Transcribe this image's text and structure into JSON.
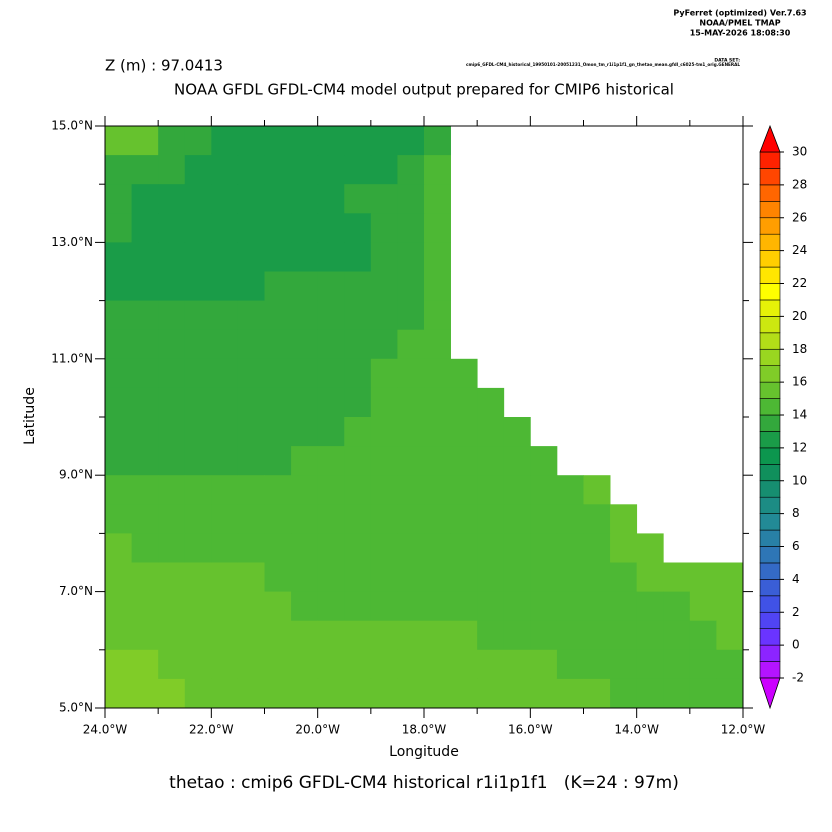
{
  "chart_data": {
    "type": "heatmap",
    "header": [
      "PyFerret (optimized) Ver.7.63",
      "NOAA/PMEL TMAP",
      "15-MAY-2026 18:08:30"
    ],
    "dataset_label": "DATA SET:",
    "dataset": "cmip6_GFDL-CM4_historical_19950101-20051231_Omon_tm_r1i1p1f1_gn_thetao_mean.gfdl_c6025-tm1_orig.GENERAL",
    "subtitle": "Z (m) : 97.0413",
    "title": "NOAA GFDL GFDL-CM4 model output prepared for CMIP6 historical",
    "footer": "thetao : cmip6 GFDL-CM4 historical r1i1p1f1   (K=24 : 97m)",
    "xlabel": "Longitude",
    "ylabel": "Latitude",
    "xlim": [
      -24,
      -12
    ],
    "ylim": [
      5,
      15
    ],
    "xticks": [
      {
        "value": -24,
        "label": "24.0°W"
      },
      {
        "value": -22,
        "label": "22.0°W"
      },
      {
        "value": -20,
        "label": "20.0°W"
      },
      {
        "value": -18,
        "label": "18.0°W"
      },
      {
        "value": -16,
        "label": "16.0°W"
      },
      {
        "value": -14,
        "label": "14.0°W"
      },
      {
        "value": -12,
        "label": "12.0°W"
      }
    ],
    "xminor_ticks": [
      -23,
      -21,
      -19,
      -17,
      -15,
      -13
    ],
    "yticks": [
      {
        "value": 5,
        "label": "5.0°N"
      },
      {
        "value": 7,
        "label": "7.0°N"
      },
      {
        "value": 9,
        "label": "9.0°N"
      },
      {
        "value": 11,
        "label": "11.0°N"
      },
      {
        "value": 13,
        "label": "13.0°N"
      },
      {
        "value": 15,
        "label": "15.0°N"
      }
    ],
    "yminor_ticks": [
      6,
      8,
      10,
      12,
      14
    ],
    "x": [
      -23.75,
      -23.25,
      -22.75,
      -22.25,
      -21.75,
      -21.25,
      -20.75,
      -20.25,
      -19.75,
      -19.25,
      -18.75,
      -18.25,
      -17.75,
      -17.25,
      -16.75,
      -16.25,
      -15.75,
      -15.25,
      -14.75,
      -14.25,
      -13.75,
      -13.25,
      -12.75,
      -12.25
    ],
    "y": [
      14.75,
      14.25,
      13.75,
      13.25,
      12.75,
      12.25,
      11.75,
      11.25,
      10.75,
      10.25,
      9.75,
      9.25,
      8.75,
      8.25,
      7.75,
      7.25,
      6.75,
      6.25,
      5.75,
      5.25
    ],
    "z": [
      [
        15.5,
        15.5,
        13.5,
        13.5,
        12.5,
        12.5,
        12.5,
        12.5,
        12.5,
        12.5,
        12.5,
        12.5,
        13.5,
        null,
        null,
        null,
        null,
        null,
        null,
        null,
        null,
        null,
        null,
        null
      ],
      [
        13.5,
        13.5,
        13.5,
        12.5,
        12.5,
        12.5,
        12.5,
        12.5,
        12.5,
        12.5,
        12.5,
        13.5,
        14.5,
        null,
        null,
        null,
        null,
        null,
        null,
        null,
        null,
        null,
        null,
        null
      ],
      [
        13.5,
        12.5,
        12.5,
        12.5,
        12.5,
        12.5,
        12.5,
        12.5,
        12.5,
        13.5,
        13.5,
        13.5,
        14.5,
        null,
        null,
        null,
        null,
        null,
        null,
        null,
        null,
        null,
        null,
        null
      ],
      [
        13.5,
        12.5,
        12.5,
        12.5,
        12.5,
        12.5,
        12.5,
        12.5,
        12.5,
        12.5,
        13.5,
        13.5,
        14.5,
        null,
        null,
        null,
        null,
        null,
        null,
        null,
        null,
        null,
        null,
        null
      ],
      [
        12.5,
        12.5,
        12.5,
        12.5,
        12.5,
        12.5,
        12.5,
        12.5,
        12.5,
        12.5,
        13.5,
        13.5,
        14.5,
        null,
        null,
        null,
        null,
        null,
        null,
        null,
        null,
        null,
        null,
        null
      ],
      [
        12.5,
        12.5,
        12.5,
        12.5,
        12.5,
        12.5,
        13.5,
        13.5,
        13.5,
        13.5,
        13.5,
        13.5,
        14.5,
        null,
        null,
        null,
        null,
        null,
        null,
        null,
        null,
        null,
        null,
        null
      ],
      [
        13.5,
        13.5,
        13.5,
        13.5,
        13.5,
        13.5,
        13.5,
        13.5,
        13.5,
        13.5,
        13.5,
        13.5,
        14.5,
        null,
        null,
        null,
        null,
        null,
        null,
        null,
        null,
        null,
        null,
        null
      ],
      [
        13.5,
        13.5,
        13.5,
        13.5,
        13.5,
        13.5,
        13.5,
        13.5,
        13.5,
        13.5,
        13.5,
        14.5,
        14.5,
        null,
        null,
        null,
        null,
        null,
        null,
        null,
        null,
        null,
        null,
        null
      ],
      [
        13.5,
        13.5,
        13.5,
        13.5,
        13.5,
        13.5,
        13.5,
        13.5,
        13.5,
        13.5,
        14.5,
        14.5,
        14.5,
        14.5,
        null,
        null,
        null,
        null,
        null,
        null,
        null,
        null,
        null,
        null
      ],
      [
        13.5,
        13.5,
        13.5,
        13.5,
        13.5,
        13.5,
        13.5,
        13.5,
        13.5,
        13.5,
        14.5,
        14.5,
        14.5,
        14.5,
        14.5,
        null,
        null,
        null,
        null,
        null,
        null,
        null,
        null,
        null
      ],
      [
        13.5,
        13.5,
        13.5,
        13.5,
        13.5,
        13.5,
        13.5,
        13.5,
        13.5,
        14.5,
        14.5,
        14.5,
        14.5,
        14.5,
        14.5,
        14.5,
        null,
        null,
        null,
        null,
        null,
        null,
        null,
        null
      ],
      [
        13.5,
        13.5,
        13.5,
        13.5,
        13.5,
        13.5,
        13.5,
        14.5,
        14.5,
        14.5,
        14.5,
        14.5,
        14.5,
        14.5,
        14.5,
        14.5,
        14.5,
        null,
        null,
        null,
        null,
        null,
        null,
        null
      ],
      [
        14.5,
        14.5,
        14.5,
        14.5,
        14.5,
        14.5,
        14.5,
        14.5,
        14.5,
        14.5,
        14.5,
        14.5,
        14.5,
        14.5,
        14.5,
        14.5,
        14.5,
        14.5,
        15.5,
        null,
        null,
        null,
        null,
        null
      ],
      [
        14.5,
        14.5,
        14.5,
        14.5,
        14.5,
        14.5,
        14.5,
        14.5,
        14.5,
        14.5,
        14.5,
        14.5,
        14.5,
        14.5,
        14.5,
        14.5,
        14.5,
        14.5,
        14.5,
        15.5,
        null,
        null,
        null,
        null
      ],
      [
        15.5,
        14.5,
        14.5,
        14.5,
        14.5,
        14.5,
        14.5,
        14.5,
        14.5,
        14.5,
        14.5,
        14.5,
        14.5,
        14.5,
        14.5,
        14.5,
        14.5,
        14.5,
        14.5,
        15.5,
        15.5,
        null,
        null,
        null
      ],
      [
        15.5,
        15.5,
        15.5,
        15.5,
        15.5,
        15.5,
        14.5,
        14.5,
        14.5,
        14.5,
        14.5,
        14.5,
        14.5,
        14.5,
        14.5,
        14.5,
        14.5,
        14.5,
        14.5,
        14.5,
        15.5,
        15.5,
        15.5,
        15.5
      ],
      [
        15.5,
        15.5,
        15.5,
        15.5,
        15.5,
        15.5,
        15.5,
        14.5,
        14.5,
        14.5,
        14.5,
        14.5,
        14.5,
        14.5,
        14.5,
        14.5,
        14.5,
        14.5,
        14.5,
        14.5,
        14.5,
        14.5,
        15.5,
        15.5
      ],
      [
        15.5,
        15.5,
        15.5,
        15.5,
        15.5,
        15.5,
        15.5,
        15.5,
        15.5,
        15.5,
        15.5,
        15.5,
        15.5,
        15.5,
        14.5,
        14.5,
        14.5,
        14.5,
        14.5,
        14.5,
        14.5,
        14.5,
        14.5,
        15.5
      ],
      [
        16.5,
        16.5,
        15.5,
        15.5,
        15.5,
        15.5,
        15.5,
        15.5,
        15.5,
        15.5,
        15.5,
        15.5,
        15.5,
        15.5,
        15.5,
        15.5,
        15.5,
        14.5,
        14.5,
        14.5,
        14.5,
        14.5,
        14.5,
        14.5
      ],
      [
        16.5,
        16.5,
        16.5,
        15.5,
        15.5,
        15.5,
        15.5,
        15.5,
        15.5,
        15.5,
        15.5,
        15.5,
        15.5,
        15.5,
        15.5,
        15.5,
        15.5,
        15.5,
        15.5,
        14.5,
        14.5,
        14.5,
        14.5,
        14.5
      ]
    ],
    "colorbar": {
      "levels": [
        -2,
        -1,
        0,
        1,
        2,
        3,
        4,
        5,
        6,
        7,
        8,
        9,
        10,
        11,
        12,
        13,
        14,
        15,
        16,
        17,
        18,
        19,
        20,
        21,
        22,
        23,
        24,
        25,
        26,
        27,
        28,
        29,
        30
      ],
      "colors": [
        "#b414ff",
        "#8c24ff",
        "#6a34ff",
        "#5044f4",
        "#4052e6",
        "#3a5ed6",
        "#346ac6",
        "#2e76b6",
        "#2880a6",
        "#228a96",
        "#1c8c84",
        "#168e70",
        "#10905c",
        "#0c964e",
        "#1a9c48",
        "#33a83c",
        "#4db834",
        "#66c22e",
        "#80cc28",
        "#99d620",
        "#b3de18",
        "#cce810",
        "#e6f208",
        "#ffff00",
        "#ffe600",
        "#ffce00",
        "#ffb600",
        "#ff9e00",
        "#ff8400",
        "#ff6600",
        "#ff4600",
        "#ff2200"
      ],
      "over_color": "#ff0000",
      "under_color": "#cc00ff",
      "ticks": [
        -2,
        0,
        2,
        4,
        6,
        8,
        10,
        12,
        14,
        16,
        18,
        20,
        22,
        24,
        26,
        28,
        30
      ]
    }
  }
}
